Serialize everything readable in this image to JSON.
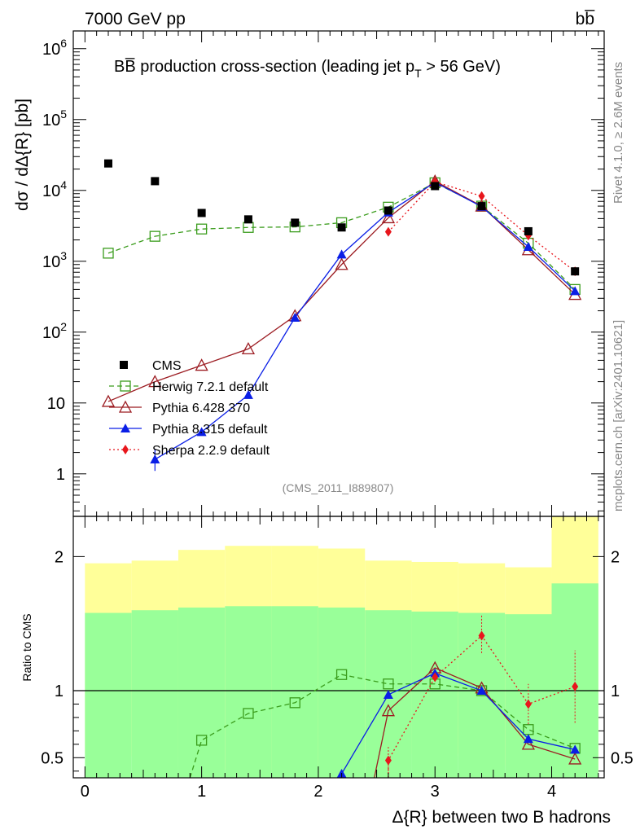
{
  "header": {
    "left": "7000 GeV pp",
    "right": "bb̅"
  },
  "side_labels": {
    "rivet": "Rivet 4.1.0, ≥ 2.6M events",
    "mcplots": "mcplots.cern.ch [arXiv:2401.10621]"
  },
  "chart_data": {
    "type": "line",
    "title": "BB̅ production cross-section (leading jet p",
    "title_sub": "T",
    "title_end": " > 56 GeV)",
    "analysis_id": "(CMS_2011_I889807)",
    "xlabel": "Δ{R} between two B hadrons",
    "ylabel_main": "dσ / dΔ{R} [pb]",
    "ylabel_ratio": "Ratio to CMS",
    "xlim": [
      -0.1,
      4.45
    ],
    "ylim_main_log10": [
      -0.6,
      6.25
    ],
    "ylim_ratio": [
      0.35,
      2.3
    ],
    "x_ticks": [
      "0",
      "1",
      "2",
      "3",
      "4"
    ],
    "y_ticks_main": [
      "1",
      "10",
      "10^2",
      "10^3",
      "10^4",
      "10^5",
      "10^6"
    ],
    "y_ticks_ratio": [
      "0.5",
      "1",
      "2"
    ],
    "x": [
      0.2,
      0.6,
      1.0,
      1.4,
      1.8,
      2.2,
      2.6,
      3.0,
      3.4,
      3.8,
      4.2
    ],
    "data_series": {
      "name": "CMS",
      "values": [
        24000,
        13500,
        4800,
        3900,
        3500,
        3000,
        5200,
        11500,
        6000,
        2650,
        720
      ]
    },
    "bands": {
      "edges": [
        0.0,
        0.4,
        0.8,
        1.2,
        1.6,
        2.0,
        2.4,
        2.8,
        3.2,
        3.6,
        4.0,
        4.4
      ],
      "green_upper": [
        1.58,
        1.6,
        1.62,
        1.63,
        1.63,
        1.62,
        1.6,
        1.59,
        1.58,
        1.57,
        1.8
      ],
      "green_lower": [
        0.35,
        0.35,
        0.35,
        0.35,
        0.35,
        0.35,
        0.35,
        0.35,
        0.35,
        0.35,
        0.35
      ],
      "yellow_upper": [
        1.95,
        1.97,
        2.05,
        2.08,
        2.08,
        2.06,
        1.97,
        1.96,
        1.95,
        1.92,
        2.3
      ],
      "yellow_lower": [
        0.53,
        0.51,
        0.43,
        0.41,
        0.4,
        0.43,
        0.49,
        0.53,
        0.51,
        0.44,
        0.35
      ]
    },
    "series": [
      {
        "name": "Herwig 7.2.1 default",
        "color": "#3a9c1c",
        "marker": "open-square",
        "dash": "6,4",
        "x": [
          0.2,
          0.6,
          1.0,
          1.4,
          1.8,
          2.2,
          2.6,
          3.0,
          3.4,
          3.8,
          4.2
        ],
        "values": [
          1300,
          2250,
          2850,
          3000,
          3050,
          3500,
          5800,
          12800,
          6000,
          1800,
          400
        ],
        "ratio_x": [
          1.0,
          1.4,
          1.8,
          2.2,
          2.6,
          3.0,
          3.4,
          3.8,
          4.2
        ],
        "ratio": [
          0.63,
          0.83,
          0.91,
          1.12,
          1.05,
          1.05,
          1.0,
          0.71,
          0.57
        ],
        "ratio_clip_start": [
          0.9,
          0.35
        ]
      },
      {
        "name": "Pythia 6.428 370",
        "color": "#9c1c22",
        "marker": "open-triangle",
        "dash": "",
        "x": [
          0.2,
          0.6,
          1.0,
          1.4,
          1.8,
          2.2,
          2.6,
          3.0,
          3.4,
          3.8,
          4.2
        ],
        "values": [
          10.5,
          20,
          34,
          58,
          170,
          900,
          4100,
          13500,
          6000,
          1450,
          340
        ],
        "ratio_x": [
          2.6,
          3.0,
          3.4,
          3.8,
          4.2
        ],
        "ratio": [
          0.85,
          1.17,
          1.02,
          0.6,
          0.49
        ],
        "ratio_clip_start": [
          2.48,
          0.35
        ]
      },
      {
        "name": "Pythia 8.315 default",
        "color": "#0a1ee6",
        "marker": "filled-triangle",
        "dash": "",
        "x": [
          0.6,
          1.0,
          1.4,
          1.8,
          2.2,
          2.6,
          3.0,
          3.4,
          3.8,
          4.2
        ],
        "values": [
          1.6,
          3.9,
          13,
          160,
          1250,
          4900,
          13000,
          5900,
          1600,
          380
        ],
        "ratio_x": [
          2.2,
          2.6,
          3.0,
          3.4,
          3.8,
          4.2
        ],
        "ratio": [
          0.38,
          0.97,
          1.13,
          1.0,
          0.64,
          0.56
        ],
        "ratio_clip_start": null
      },
      {
        "name": "Sherpa 2.2.9 default",
        "color": "#e8161c",
        "marker": "filled-diamond",
        "dash": "2,3",
        "x": [
          2.6,
          3.0,
          3.4,
          3.8,
          4.2
        ],
        "values": [
          2600,
          13200,
          8300,
          2300,
          720
        ],
        "ratio_x": [
          2.6,
          3.0,
          3.4,
          3.8,
          4.2
        ],
        "ratio": [
          0.48,
          1.1,
          1.41,
          0.9,
          1.03
        ],
        "ratio_clip_start": [
          2.6,
          0.35
        ]
      }
    ]
  }
}
